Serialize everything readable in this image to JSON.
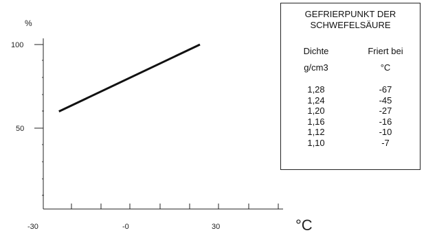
{
  "chart_data": {
    "type": "line",
    "y_unit": "%",
    "x_unit": "°C",
    "x_tick_labels": [
      "-30",
      "-0",
      "30"
    ],
    "y_tick_labels": [
      "100",
      "50"
    ],
    "series": [
      {
        "x": [
          -24,
          30
        ],
        "y": [
          60,
          100
        ]
      }
    ],
    "xlim": [
      -30,
      60
    ],
    "ylim": [
      0,
      100
    ],
    "grid": false,
    "line_color": "#111111"
  },
  "table": {
    "title_line1": "GEFRIERPUNKT DER",
    "title_line2": "SCHWEFELSÄURE",
    "header1_line1": "Dichte",
    "header1_line2": "g/cm3",
    "header2_line1": "Friert bei",
    "header2_line2": "°C",
    "rows": [
      {
        "density": "1,28",
        "freeze": "-67"
      },
      {
        "density": "1,24",
        "freeze": "-45"
      },
      {
        "density": "1,20",
        "freeze": "-27"
      },
      {
        "density": "1,16",
        "freeze": "-16"
      },
      {
        "density": "1,12",
        "freeze": "-10"
      },
      {
        "density": "1,10",
        "freeze": "-7"
      }
    ]
  }
}
